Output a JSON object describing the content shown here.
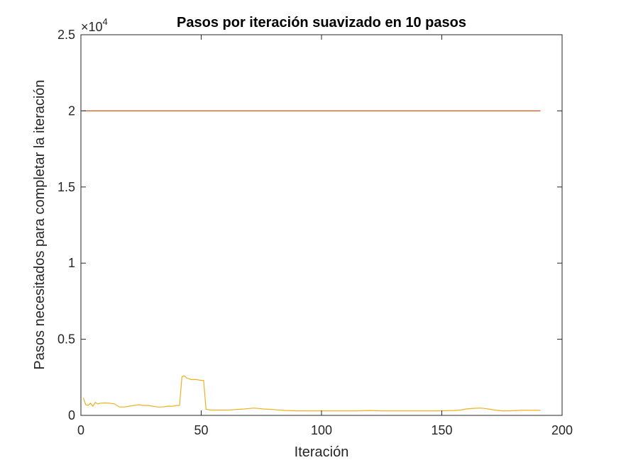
{
  "chart_data": {
    "type": "line",
    "title": "Pasos por iteración suavizado en 10 pasos",
    "xlabel": "Iteración",
    "ylabel": "Pasos necesitados para completar la iteración",
    "y_exponent_label": "×10",
    "y_exponent_power": "4",
    "xlim": [
      0,
      200
    ],
    "ylim": [
      0,
      25000
    ],
    "x_ticks": [
      0,
      50,
      100,
      150,
      200
    ],
    "x_tick_labels": [
      "0",
      "50",
      "100",
      "150",
      "200"
    ],
    "y_ticks": [
      0,
      5000,
      10000,
      15000,
      20000,
      25000
    ],
    "y_tick_labels": [
      "0",
      "0.5",
      "1",
      "1.5",
      "2",
      "2.5"
    ],
    "grid": false,
    "box": true,
    "series": [
      {
        "color": "#D95319",
        "x": [
          1,
          191
        ],
        "y": [
          20000,
          20000
        ]
      },
      {
        "color": "#EDB120",
        "x": [
          1,
          2,
          3,
          4,
          5,
          6,
          7,
          8,
          10,
          12,
          14,
          16,
          18,
          20,
          22,
          24,
          26,
          28,
          30,
          32,
          34,
          36,
          38,
          40,
          41,
          42,
          43,
          44,
          45,
          46,
          48,
          50,
          51,
          52,
          54,
          56,
          58,
          60,
          62,
          64,
          66,
          68,
          70,
          72,
          74,
          76,
          78,
          80,
          85,
          90,
          95,
          100,
          105,
          110,
          115,
          120,
          125,
          130,
          135,
          140,
          145,
          150,
          155,
          158,
          160,
          163,
          166,
          168,
          170,
          172,
          175,
          178,
          181,
          184,
          187,
          190,
          191
        ],
        "y": [
          1150,
          700,
          650,
          800,
          600,
          850,
          750,
          800,
          820,
          800,
          750,
          550,
          550,
          600,
          650,
          700,
          650,
          650,
          600,
          550,
          550,
          600,
          600,
          650,
          650,
          2550,
          2600,
          2450,
          2400,
          2350,
          2350,
          2300,
          2300,
          400,
          350,
          350,
          350,
          350,
          350,
          380,
          400,
          420,
          450,
          480,
          450,
          420,
          400,
          380,
          320,
          300,
          300,
          300,
          300,
          300,
          300,
          320,
          300,
          300,
          300,
          300,
          300,
          300,
          320,
          350,
          420,
          460,
          480,
          450,
          400,
          350,
          300,
          300,
          320,
          340,
          330,
          330,
          330
        ]
      }
    ]
  }
}
